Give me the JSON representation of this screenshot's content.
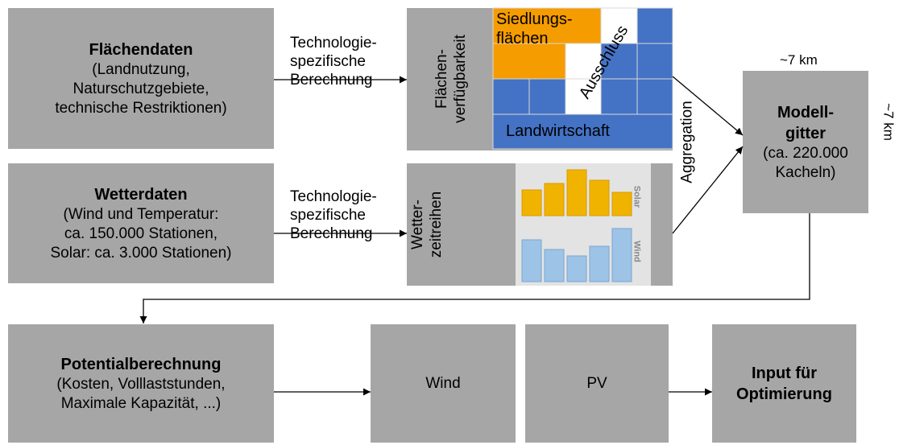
{
  "inputs": [
    {
      "title": "Flächendaten",
      "lines": [
        "(Landnutzung,",
        "Naturschutzgebiete,",
        "technische Restriktionen)"
      ]
    },
    {
      "title": "Wetterdaten",
      "lines": [
        "(Wind und Temperatur:",
        "ca. 150.000 Stationen,",
        "Solar: ca. 3.000 Stationen)"
      ]
    }
  ],
  "calc_labels": [
    [
      "Technologie-",
      "spezifische",
      "Berechnung"
    ],
    [
      "Technologie-",
      "spezifische",
      "Berechnung"
    ]
  ],
  "availability": {
    "label": [
      "Flächen-",
      "verfügbarkeit"
    ],
    "settlement": [
      "Siedlungs-",
      "flächen"
    ],
    "exclusion": "Ausschluss",
    "agriculture": "Landwirtschaft"
  },
  "weather": {
    "label": [
      "Wetter-",
      "zeitreihen"
    ],
    "solar": "Solar",
    "wind": "Wind"
  },
  "aggregation": "Aggregation",
  "grid": {
    "title": [
      "Modell-",
      "gitter"
    ],
    "lines": [
      "(ca. 220.000",
      "Kacheln)"
    ],
    "width_label": "~7 km",
    "height_label": "~7 km"
  },
  "outputs": [
    {
      "title": "Potentialberechnung",
      "lines": [
        "(Kosten, Volllaststunden,",
        "Maximale Kapazität, ...)"
      ]
    },
    {
      "title": "Wind"
    },
    {
      "title": "PV"
    },
    {
      "title": [
        "Input für",
        "Optimierung"
      ]
    }
  ]
}
